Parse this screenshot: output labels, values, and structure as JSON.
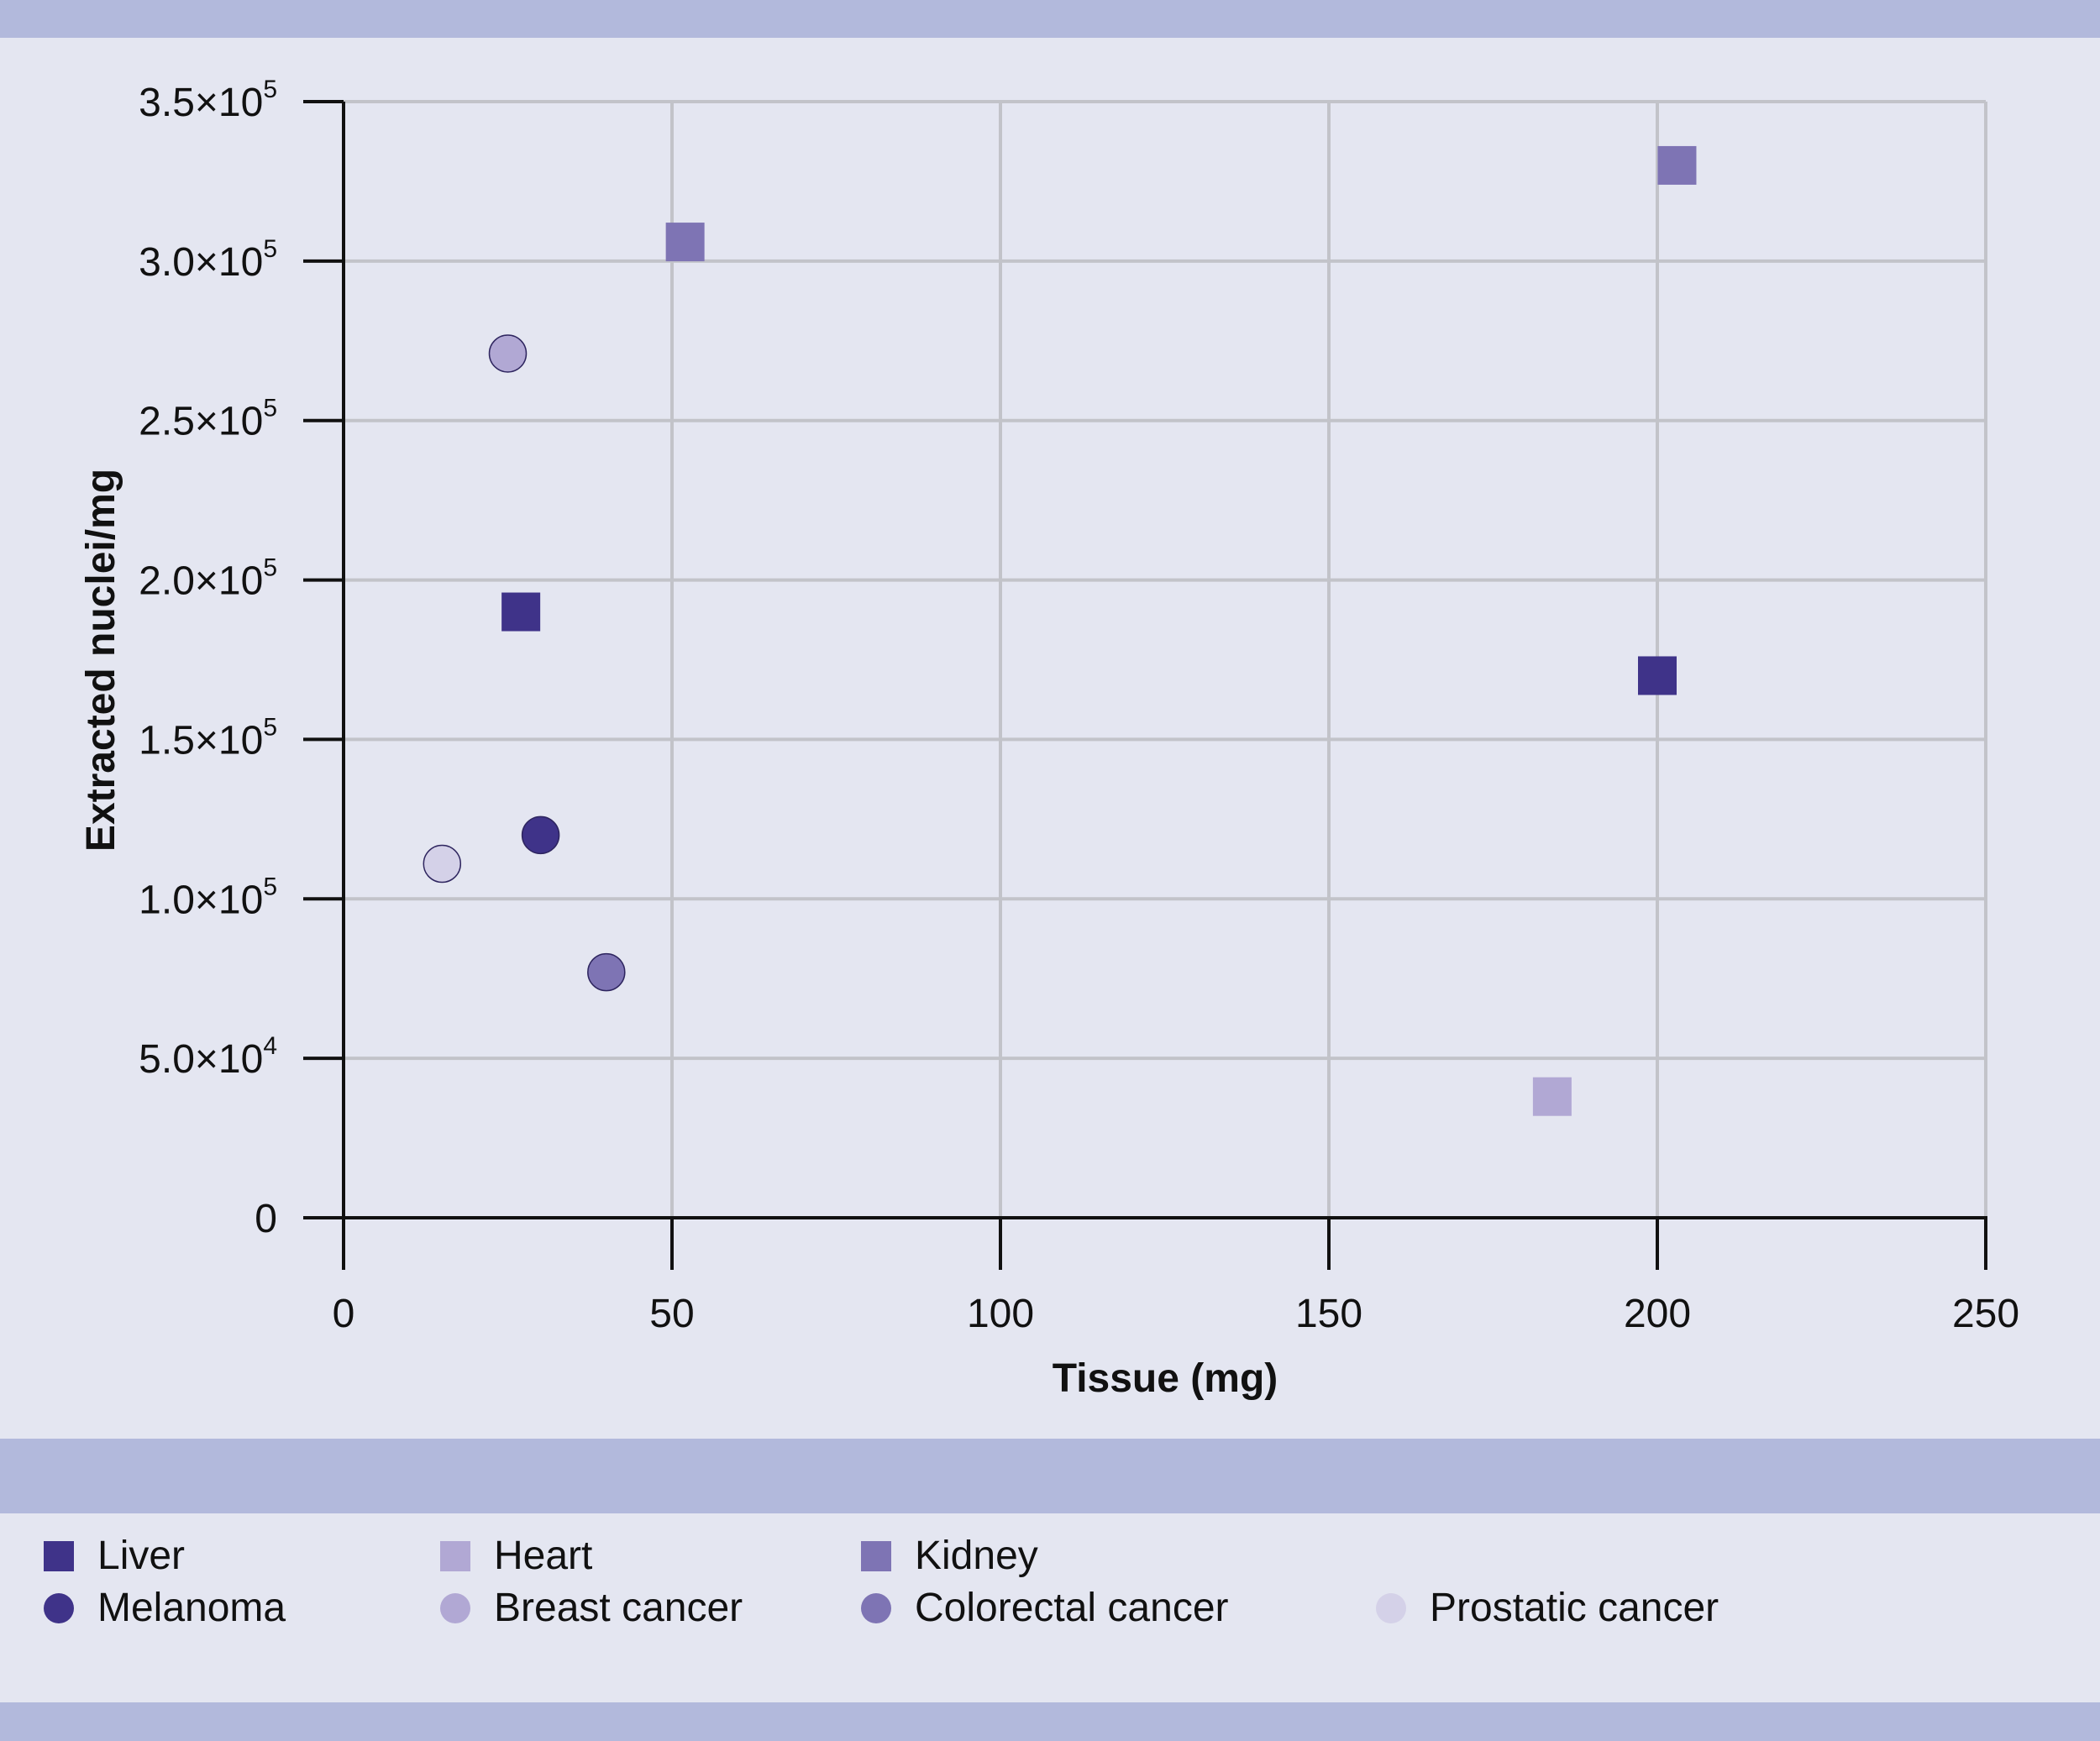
{
  "chart_data": {
    "type": "scatter",
    "xlabel": "Tissue (mg)",
    "ylabel": "Extracted nuclei/mg",
    "xlim": [
      0,
      250
    ],
    "ylim": [
      0,
      350000
    ],
    "x_ticks": [
      0,
      50,
      100,
      150,
      200,
      250
    ],
    "x_tick_labels": [
      "0",
      "50",
      "100",
      "150",
      "200",
      "250"
    ],
    "y_ticks": [
      0,
      50000,
      100000,
      150000,
      200000,
      250000,
      300000,
      350000
    ],
    "y_tick_labels": [
      {
        "mantissa": "0",
        "exponent": ""
      },
      {
        "mantissa": "5.0×10",
        "exponent": "4"
      },
      {
        "mantissa": "1.0×10",
        "exponent": "5"
      },
      {
        "mantissa": "1.5×10",
        "exponent": "5"
      },
      {
        "mantissa": "2.0×10",
        "exponent": "5"
      },
      {
        "mantissa": "2.5×10",
        "exponent": "5"
      },
      {
        "mantissa": "3.0×10",
        "exponent": "5"
      },
      {
        "mantissa": "3.5×10",
        "exponent": "5"
      }
    ],
    "grid": true,
    "legend_position": "bottom",
    "series": [
      {
        "name": "Liver",
        "marker": "square",
        "color": "#3f3389",
        "points": [
          {
            "x": 27,
            "y": 190000
          },
          {
            "x": 200,
            "y": 170000
          }
        ]
      },
      {
        "name": "Heart",
        "marker": "square",
        "color": "#b1a8d4",
        "points": [
          {
            "x": 184,
            "y": 38000
          }
        ]
      },
      {
        "name": "Kidney",
        "marker": "square",
        "color": "#7e74b4",
        "points": [
          {
            "x": 52,
            "y": 306000
          },
          {
            "x": 203,
            "y": 330000
          }
        ]
      },
      {
        "name": "Melanoma",
        "marker": "circle",
        "color": "#3f3389",
        "points": [
          {
            "x": 30,
            "y": 120000
          }
        ]
      },
      {
        "name": "Breast cancer",
        "marker": "circle",
        "color": "#b1a8d4",
        "points": [
          {
            "x": 25,
            "y": 271000
          }
        ]
      },
      {
        "name": "Colorectal cancer",
        "marker": "circle",
        "color": "#7e74b4",
        "points": [
          {
            "x": 40,
            "y": 77000
          }
        ]
      },
      {
        "name": "Prostatic cancer",
        "marker": "circle",
        "color": "#d4d1e8",
        "points": [
          {
            "x": 15,
            "y": 111000
          }
        ]
      }
    ]
  },
  "colors": {
    "background": "#e4e6f1",
    "band": "#b2b9dc",
    "grid": "#c2c3c9",
    "axis": "#111111"
  }
}
